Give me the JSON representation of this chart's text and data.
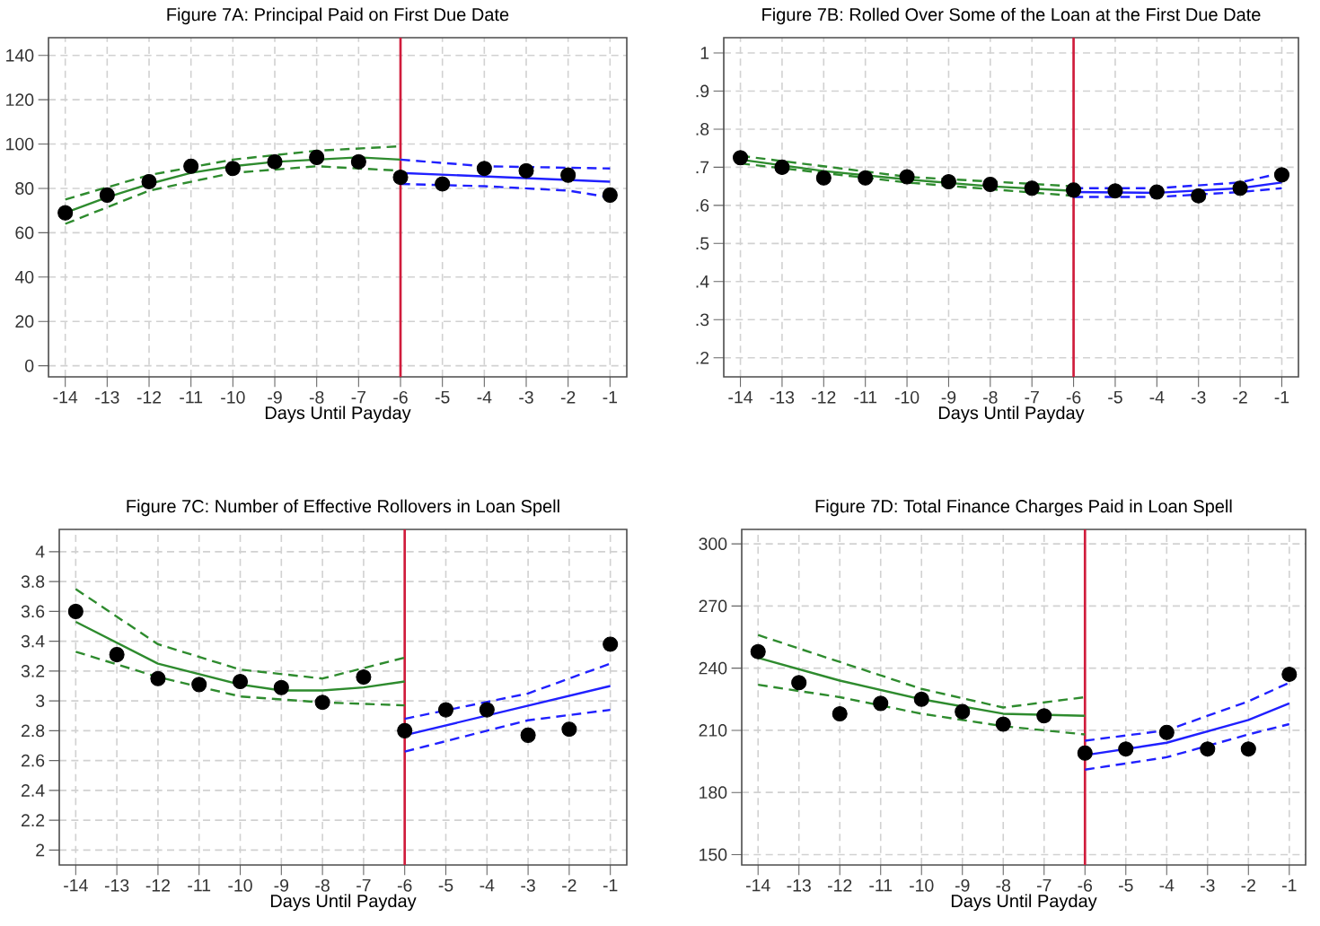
{
  "chart_data": [
    {
      "type": "scatter",
      "title": "Figure 7A: Principal Paid on First Due Date",
      "xlabel": "Days Until Payday",
      "xlim": [
        -14.4,
        -0.6
      ],
      "xticks": [
        -14,
        -13,
        -12,
        -11,
        -10,
        -9,
        -8,
        -7,
        -6,
        -5,
        -4,
        -3,
        -2,
        -1
      ],
      "ylim": [
        -5,
        148
      ],
      "yticks": [
        0,
        20,
        40,
        60,
        80,
        100,
        120,
        140
      ],
      "grid": true,
      "ref_lines": [
        {
          "axis": "x",
          "value": -6,
          "color": "#d01c3c"
        }
      ],
      "series": [
        {
          "type": "line",
          "color": "#2e8b2e",
          "line_style": "solid",
          "marker": "none",
          "x": [
            -14,
            -13,
            -12,
            -11,
            -10,
            -9,
            -8,
            -7,
            -6
          ],
          "values": [
            69,
            76,
            82,
            87,
            90,
            92,
            93,
            94,
            93
          ]
        },
        {
          "type": "line",
          "color": "#2e8b2e",
          "line_style": "dashed",
          "marker": "none",
          "x": [
            -14,
            -12,
            -10,
            -8,
            -6
          ],
          "values": [
            75,
            86,
            93,
            97,
            99
          ]
        },
        {
          "type": "line",
          "color": "#2e8b2e",
          "line_style": "dashed",
          "marker": "none",
          "x": [
            -14,
            -12,
            -10,
            -8,
            -6
          ],
          "values": [
            64,
            79,
            87,
            90,
            88
          ]
        },
        {
          "type": "line",
          "color": "#2020ff",
          "line_style": "solid",
          "marker": "none",
          "x": [
            -6,
            -1
          ],
          "values": [
            87,
            83
          ]
        },
        {
          "type": "line",
          "color": "#2020ff",
          "line_style": "dashed",
          "marker": "none",
          "x": [
            -6,
            -4,
            -1
          ],
          "values": [
            93,
            90,
            89
          ]
        },
        {
          "type": "line",
          "color": "#2020ff",
          "line_style": "dashed",
          "marker": "none",
          "x": [
            -6,
            -4,
            -2,
            -1
          ],
          "values": [
            82,
            81,
            79,
            76
          ]
        },
        {
          "color": "#000000",
          "marker": "circle",
          "x": [
            -14,
            -13,
            -12,
            -11,
            -10,
            -9,
            -8,
            -7,
            -6,
            -5,
            -4,
            -3,
            -2,
            -1
          ],
          "values": [
            69,
            77,
            83,
            90,
            89,
            92,
            94,
            92,
            85,
            82,
            89,
            88,
            86,
            77
          ]
        }
      ]
    },
    {
      "type": "scatter",
      "title": "Figure 7B: Rolled Over Some of the Loan at the First Due Date",
      "xlabel": "Days Until Payday",
      "xlim": [
        -14.4,
        -0.6
      ],
      "xticks": [
        -14,
        -13,
        -12,
        -11,
        -10,
        -9,
        -8,
        -7,
        -6,
        -5,
        -4,
        -3,
        -2,
        -1
      ],
      "ylim": [
        0.15,
        1.04
      ],
      "yticks": [
        {
          "value": 0.2,
          "label": ".2"
        },
        {
          "value": 0.3,
          "label": ".3"
        },
        {
          "value": 0.4,
          "label": ".4"
        },
        {
          "value": 0.5,
          "label": ".5"
        },
        {
          "value": 0.6,
          "label": ".6"
        },
        {
          "value": 0.7,
          "label": ".7"
        },
        {
          "value": 0.8,
          "label": ".8"
        },
        {
          "value": 0.9,
          "label": ".9"
        },
        1
      ],
      "grid": true,
      "ref_lines": [
        {
          "axis": "x",
          "value": -6,
          "color": "#d01c3c"
        }
      ],
      "series": [
        {
          "type": "line",
          "color": "#2e8b2e",
          "line_style": "solid",
          "marker": "none",
          "x": [
            -14,
            -12,
            -10,
            -8,
            -6
          ],
          "values": [
            0.72,
            0.69,
            0.668,
            0.65,
            0.638
          ]
        },
        {
          "type": "line",
          "color": "#2e8b2e",
          "line_style": "dashed",
          "marker": "none",
          "x": [
            -14,
            -10,
            -6
          ],
          "values": [
            0.73,
            0.675,
            0.65
          ]
        },
        {
          "type": "line",
          "color": "#2e8b2e",
          "line_style": "dashed",
          "marker": "none",
          "x": [
            -14,
            -10,
            -6
          ],
          "values": [
            0.71,
            0.66,
            0.625
          ]
        },
        {
          "type": "line",
          "color": "#2020ff",
          "line_style": "solid",
          "marker": "none",
          "x": [
            -6,
            -4,
            -2,
            -1
          ],
          "values": [
            0.635,
            0.633,
            0.645,
            0.66
          ]
        },
        {
          "type": "line",
          "color": "#2020ff",
          "line_style": "dashed",
          "marker": "none",
          "x": [
            -6,
            -4,
            -2,
            -1
          ],
          "values": [
            0.645,
            0.645,
            0.66,
            0.685
          ]
        },
        {
          "type": "line",
          "color": "#2020ff",
          "line_style": "dashed",
          "marker": "none",
          "x": [
            -6,
            -4,
            -2,
            -1
          ],
          "values": [
            0.622,
            0.622,
            0.635,
            0.645
          ]
        },
        {
          "color": "#000000",
          "marker": "circle",
          "x": [
            -14,
            -13,
            -12,
            -11,
            -10,
            -9,
            -8,
            -7,
            -6,
            -5,
            -4,
            -3,
            -2,
            -1
          ],
          "values": [
            0.725,
            0.7,
            0.672,
            0.672,
            0.675,
            0.662,
            0.655,
            0.645,
            0.64,
            0.638,
            0.635,
            0.625,
            0.645,
            0.68
          ]
        }
      ]
    },
    {
      "type": "scatter",
      "title": "Figure 7C: Number of Effective Rollovers in Loan Spell",
      "xlabel": "Days Until Payday",
      "xlim": [
        -14.4,
        -0.6
      ],
      "xticks": [
        -14,
        -13,
        -12,
        -11,
        -10,
        -9,
        -8,
        -7,
        -6,
        -5,
        -4,
        -3,
        -2,
        -1
      ],
      "ylim": [
        1.9,
        4.15
      ],
      "yticks": [
        2,
        2.2,
        2.4,
        2.6,
        2.8,
        3,
        3.2,
        3.4,
        3.6,
        3.8,
        4
      ],
      "grid": true,
      "ref_lines": [
        {
          "axis": "x",
          "value": -6,
          "color": "#d01c3c"
        }
      ],
      "series": [
        {
          "type": "line",
          "color": "#2e8b2e",
          "line_style": "solid",
          "marker": "none",
          "x": [
            -14,
            -12,
            -10,
            -9,
            -8,
            -7,
            -6
          ],
          "values": [
            3.53,
            3.25,
            3.11,
            3.07,
            3.07,
            3.09,
            3.13
          ]
        },
        {
          "type": "line",
          "color": "#2e8b2e",
          "line_style": "dashed",
          "marker": "none",
          "x": [
            -14,
            -12,
            -10,
            -8,
            -6
          ],
          "values": [
            3.75,
            3.38,
            3.21,
            3.15,
            3.29
          ]
        },
        {
          "type": "line",
          "color": "#2e8b2e",
          "line_style": "dashed",
          "marker": "none",
          "x": [
            -14,
            -12,
            -10,
            -8,
            -6
          ],
          "values": [
            3.33,
            3.16,
            3.03,
            2.99,
            2.97
          ]
        },
        {
          "type": "line",
          "color": "#2020ff",
          "line_style": "solid",
          "marker": "none",
          "x": [
            -6,
            -1
          ],
          "values": [
            2.77,
            3.1
          ]
        },
        {
          "type": "line",
          "color": "#2020ff",
          "line_style": "dashed",
          "marker": "none",
          "x": [
            -6,
            -3,
            -1
          ],
          "values": [
            2.88,
            3.05,
            3.25
          ]
        },
        {
          "type": "line",
          "color": "#2020ff",
          "line_style": "dashed",
          "marker": "none",
          "x": [
            -6,
            -3,
            -1
          ],
          "values": [
            2.66,
            2.87,
            2.94
          ]
        },
        {
          "color": "#000000",
          "marker": "circle",
          "x": [
            -14,
            -13,
            -12,
            -11,
            -10,
            -9,
            -8,
            -7,
            -6,
            -5,
            -4,
            -3,
            -2,
            -1
          ],
          "values": [
            3.6,
            3.31,
            3.15,
            3.11,
            3.13,
            3.09,
            2.99,
            3.16,
            2.8,
            2.94,
            2.94,
            2.77,
            2.81,
            3.38
          ]
        }
      ]
    },
    {
      "type": "scatter",
      "title": "Figure 7D: Total Finance Charges Paid in Loan Spell",
      "xlabel": "Days Until Payday",
      "xlim": [
        -14.4,
        -0.6
      ],
      "xticks": [
        -14,
        -13,
        -12,
        -11,
        -10,
        -9,
        -8,
        -7,
        -6,
        -5,
        -4,
        -3,
        -2,
        -1
      ],
      "ylim": [
        145,
        307
      ],
      "yticks": [
        150,
        180,
        210,
        240,
        270,
        300
      ],
      "grid": true,
      "ref_lines": [
        {
          "axis": "x",
          "value": -6,
          "color": "#d01c3c"
        }
      ],
      "series": [
        {
          "type": "line",
          "color": "#2e8b2e",
          "line_style": "solid",
          "marker": "none",
          "x": [
            -14,
            -12,
            -10,
            -8,
            -6
          ],
          "values": [
            245,
            234,
            225,
            218,
            217
          ]
        },
        {
          "type": "line",
          "color": "#2e8b2e",
          "line_style": "dashed",
          "marker": "none",
          "x": [
            -14,
            -12,
            -10,
            -8,
            -6
          ],
          "values": [
            256,
            243,
            230,
            221,
            226
          ]
        },
        {
          "type": "line",
          "color": "#2e8b2e",
          "line_style": "dashed",
          "marker": "none",
          "x": [
            -14,
            -12,
            -10,
            -8,
            -6
          ],
          "values": [
            232,
            226,
            218,
            212,
            208
          ]
        },
        {
          "type": "line",
          "color": "#2020ff",
          "line_style": "solid",
          "marker": "none",
          "x": [
            -6,
            -4,
            -2,
            -1
          ],
          "values": [
            198,
            204,
            215,
            223
          ]
        },
        {
          "type": "line",
          "color": "#2020ff",
          "line_style": "dashed",
          "marker": "none",
          "x": [
            -6,
            -4,
            -2,
            -1
          ],
          "values": [
            205,
            210,
            224,
            233
          ]
        },
        {
          "type": "line",
          "color": "#2020ff",
          "line_style": "dashed",
          "marker": "none",
          "x": [
            -6,
            -4,
            -2,
            -1
          ],
          "values": [
            191,
            197,
            208,
            213
          ]
        },
        {
          "color": "#000000",
          "marker": "circle",
          "x": [
            -14,
            -13,
            -12,
            -11,
            -10,
            -9,
            -8,
            -7,
            -6,
            -5,
            -4,
            -3,
            -2,
            -1
          ],
          "values": [
            248,
            233,
            218,
            223,
            225,
            219,
            213,
            217,
            199,
            201,
            209,
            201,
            201,
            237
          ]
        }
      ]
    }
  ]
}
